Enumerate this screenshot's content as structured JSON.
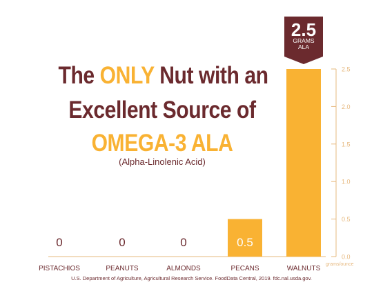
{
  "headline": {
    "line1_pre": "The ",
    "line1_highlight": "ONLY",
    "line1_post": " Nut with an",
    "line2": "Excellent Source of",
    "line3": "OMEGA-3 ALA"
  },
  "subtitle": "(Alpha-Linolenic Acid)",
  "badge": {
    "value": "2.5",
    "label_line1": "GRAMS",
    "label_line2": "ALA"
  },
  "units_label": "grams/ounce",
  "source": "U.S. Department of Agriculture, Agricultural Research Service. FoodData Central, 2019. fdc.nal.usda.gov.",
  "colors": {
    "bar": "#f9b233",
    "brand": "#6b2a2e",
    "axis": "#e6b87e",
    "zero_label": "#6b2a2e",
    "bar_label": "#ffffff"
  },
  "chart_data": {
    "type": "bar",
    "categories": [
      "PISTACHIOS",
      "PEANUTS",
      "ALMONDS",
      "PECANS",
      "WALNUTS"
    ],
    "values": [
      0,
      0,
      0,
      0.5,
      2.5
    ],
    "value_labels": [
      "0",
      "0",
      "0",
      "0.5",
      ""
    ],
    "ylim": [
      0,
      2.5
    ],
    "yticks": [
      "0.0",
      "0.5",
      "1.0",
      "1.5",
      "2.0",
      "2.5"
    ],
    "axis_side": "right",
    "grid": false
  }
}
